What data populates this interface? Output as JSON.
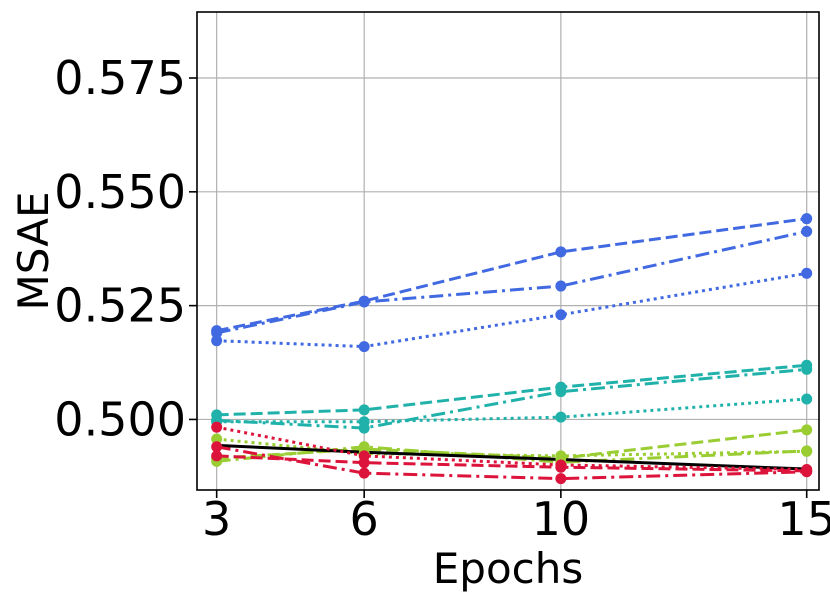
{
  "chart_data": {
    "type": "line",
    "title": "",
    "xlabel": "Epochs",
    "ylabel": "MSAE",
    "x": [
      3,
      6,
      10,
      15
    ],
    "x_tick_labels": [
      "3",
      "6",
      "10",
      "15"
    ],
    "xlim": [
      2.6,
      15.25
    ],
    "ylim": [
      0.4845,
      0.5895
    ],
    "y_ticks": [
      0.5,
      0.525,
      0.55,
      0.575
    ],
    "y_tick_labels": [
      "0.500",
      "0.525",
      "0.550",
      "0.575"
    ],
    "grid": true,
    "legend": "none",
    "series": [
      {
        "color": "#4169e1",
        "style": "dashed",
        "values": [
          0.5195,
          0.526,
          0.5368,
          0.5441
        ]
      },
      {
        "color": "#4169e1",
        "style": "dashdot",
        "values": [
          0.519,
          0.5258,
          0.5293,
          0.5413
        ]
      },
      {
        "color": "#4169e1",
        "style": "dotted",
        "values": [
          0.5173,
          0.516,
          0.523,
          0.5321
        ]
      },
      {
        "color": "#20b2aa",
        "style": "dashed",
        "values": [
          0.501,
          0.5021,
          0.5071,
          0.5119
        ]
      },
      {
        "color": "#20b2aa",
        "style": "dashdot",
        "values": [
          0.4998,
          0.4981,
          0.5061,
          0.511
        ]
      },
      {
        "color": "#20b2aa",
        "style": "dotted",
        "values": [
          0.4995,
          0.4995,
          0.5005,
          0.5045
        ]
      },
      {
        "color": "#9acd32",
        "style": "dashed",
        "values": [
          0.4915,
          0.4935,
          0.4915,
          0.4977
        ]
      },
      {
        "color": "#9acd32",
        "style": "dashdot",
        "values": [
          0.4908,
          0.494,
          0.4906,
          0.4931
        ]
      },
      {
        "color": "#9acd32",
        "style": "dotted",
        "values": [
          0.4957,
          0.4925,
          0.492,
          0.493
        ]
      },
      {
        "color": "#000000",
        "style": "solid",
        "markers": false,
        "values": [
          0.4943,
          0.4928,
          0.4912,
          0.4891
        ]
      },
      {
        "color": "#dc143c",
        "style": "dashed",
        "values": [
          0.492,
          0.4905,
          0.4895,
          0.4887
        ]
      },
      {
        "color": "#dc143c",
        "style": "dashdot",
        "values": [
          0.494,
          0.4882,
          0.487,
          0.4885
        ]
      },
      {
        "color": "#dc143c",
        "style": "dotted",
        "values": [
          0.4983,
          0.492,
          0.49,
          0.489
        ]
      }
    ]
  }
}
